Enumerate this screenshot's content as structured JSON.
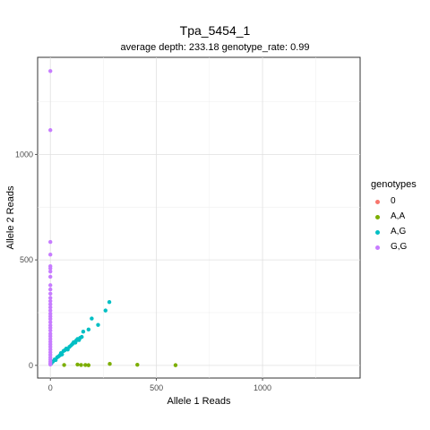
{
  "title": "Tpa_5454_1",
  "subtitle": "average depth:  233.18  genotype_rate:  0.99",
  "chart_data": {
    "type": "scatter",
    "xlabel": "Allele 1 Reads",
    "ylabel": "Allele 2 Reads",
    "xlim": [
      -60,
      1460
    ],
    "ylim": [
      -60,
      1460
    ],
    "x_ticks": [
      0,
      500,
      1000
    ],
    "y_ticks": [
      0,
      500,
      1000
    ],
    "grid": true,
    "legend_title": "genotypes",
    "legend_position": "right",
    "series": [
      {
        "name": "0",
        "color": "#F8766D",
        "points": []
      },
      {
        "name": "A,A",
        "color": "#7CAE00",
        "points": [
          [
            65,
            2
          ],
          [
            128,
            4
          ],
          [
            145,
            2
          ],
          [
            165,
            2
          ],
          [
            180,
            1
          ],
          [
            280,
            7
          ],
          [
            410,
            3
          ],
          [
            590,
            1
          ]
        ]
      },
      {
        "name": "A,G",
        "color": "#00BFC4",
        "points": [
          [
            5,
            10
          ],
          [
            12,
            18
          ],
          [
            20,
            28
          ],
          [
            25,
            25
          ],
          [
            32,
            38
          ],
          [
            38,
            42
          ],
          [
            45,
            48
          ],
          [
            50,
            58
          ],
          [
            55,
            52
          ],
          [
            62,
            68
          ],
          [
            68,
            72
          ],
          [
            75,
            80
          ],
          [
            82,
            75
          ],
          [
            90,
            88
          ],
          [
            98,
            95
          ],
          [
            105,
            102
          ],
          [
            110,
            110
          ],
          [
            118,
            108
          ],
          [
            122,
            118
          ],
          [
            128,
            125
          ],
          [
            135,
            120
          ],
          [
            140,
            130
          ],
          [
            148,
            135
          ],
          [
            155,
            160
          ],
          [
            180,
            170
          ],
          [
            195,
            222
          ],
          [
            225,
            192
          ],
          [
            260,
            260
          ],
          [
            278,
            300
          ]
        ]
      },
      {
        "name": "G,G",
        "color": "#C77CFF",
        "points": [
          [
            0,
            1395
          ],
          [
            0,
            1115
          ],
          [
            0,
            585
          ],
          [
            0,
            525
          ],
          [
            0,
            470
          ],
          [
            0,
            460
          ],
          [
            0,
            445
          ],
          [
            0,
            420
          ],
          [
            0,
            380
          ],
          [
            0,
            360
          ],
          [
            0,
            340
          ],
          [
            0,
            320
          ],
          [
            0,
            305
          ],
          [
            0,
            290
          ],
          [
            0,
            275
          ],
          [
            0,
            260
          ],
          [
            0,
            245
          ],
          [
            0,
            232
          ],
          [
            0,
            220
          ],
          [
            0,
            205
          ],
          [
            0,
            190
          ],
          [
            0,
            178
          ],
          [
            0,
            165
          ],
          [
            0,
            150
          ],
          [
            0,
            138
          ],
          [
            0,
            125
          ],
          [
            0,
            112
          ],
          [
            0,
            100
          ],
          [
            0,
            88
          ],
          [
            0,
            75
          ],
          [
            0,
            62
          ],
          [
            0,
            50
          ],
          [
            0,
            38
          ],
          [
            0,
            28
          ],
          [
            0,
            18
          ],
          [
            0,
            10
          ],
          [
            0,
            4
          ]
        ]
      }
    ]
  }
}
